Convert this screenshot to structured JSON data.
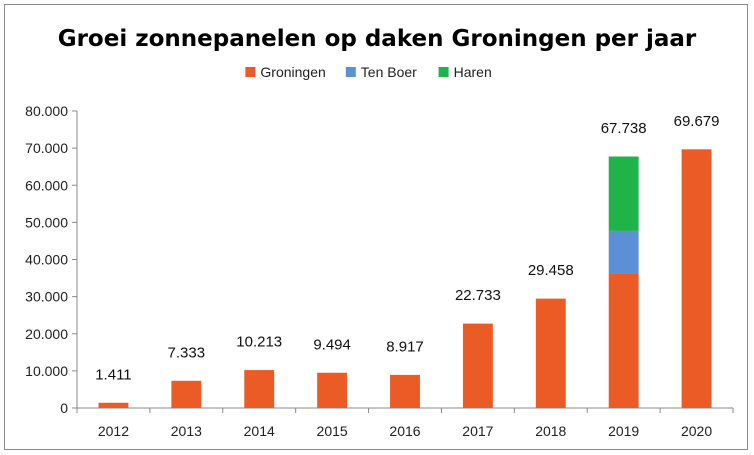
{
  "chart_data": {
    "type": "bar",
    "stacked": true,
    "title": "Groei zonnepanelen op daken Groningen per jaar",
    "xlabel": "",
    "ylabel": "",
    "categories": [
      "2012",
      "2013",
      "2014",
      "2015",
      "2016",
      "2017",
      "2018",
      "2019",
      "2020"
    ],
    "series": [
      {
        "name": "Groningen",
        "color": "#ea5b25",
        "values": [
          1411,
          7333,
          10213,
          9494,
          8917,
          22733,
          29458,
          36100,
          69679
        ]
      },
      {
        "name": "Ten Boer",
        "color": "#5b8fd6",
        "values": [
          0,
          0,
          0,
          0,
          0,
          0,
          0,
          11600,
          0
        ]
      },
      {
        "name": "Haren",
        "color": "#1fb34a",
        "values": [
          0,
          0,
          0,
          0,
          0,
          0,
          0,
          20038,
          0
        ]
      }
    ],
    "data_labels": [
      "1.411",
      "7.333",
      "10.213",
      "9.494",
      "8.917",
      "22.733",
      "29.458",
      "67.738",
      "69.679"
    ],
    "ylim": [
      0,
      80000
    ],
    "y_ticks": [
      {
        "value": 0,
        "label": "0"
      },
      {
        "value": 10000,
        "label": "10.000"
      },
      {
        "value": 20000,
        "label": "20.000"
      },
      {
        "value": 30000,
        "label": "30.000"
      },
      {
        "value": 40000,
        "label": "40.000"
      },
      {
        "value": 50000,
        "label": "50.000"
      },
      {
        "value": 60000,
        "label": "60.000"
      },
      {
        "value": 70000,
        "label": "70.000"
      },
      {
        "value": 80000,
        "label": "80.000"
      }
    ],
    "grid": false,
    "legend_position": "top-center"
  }
}
